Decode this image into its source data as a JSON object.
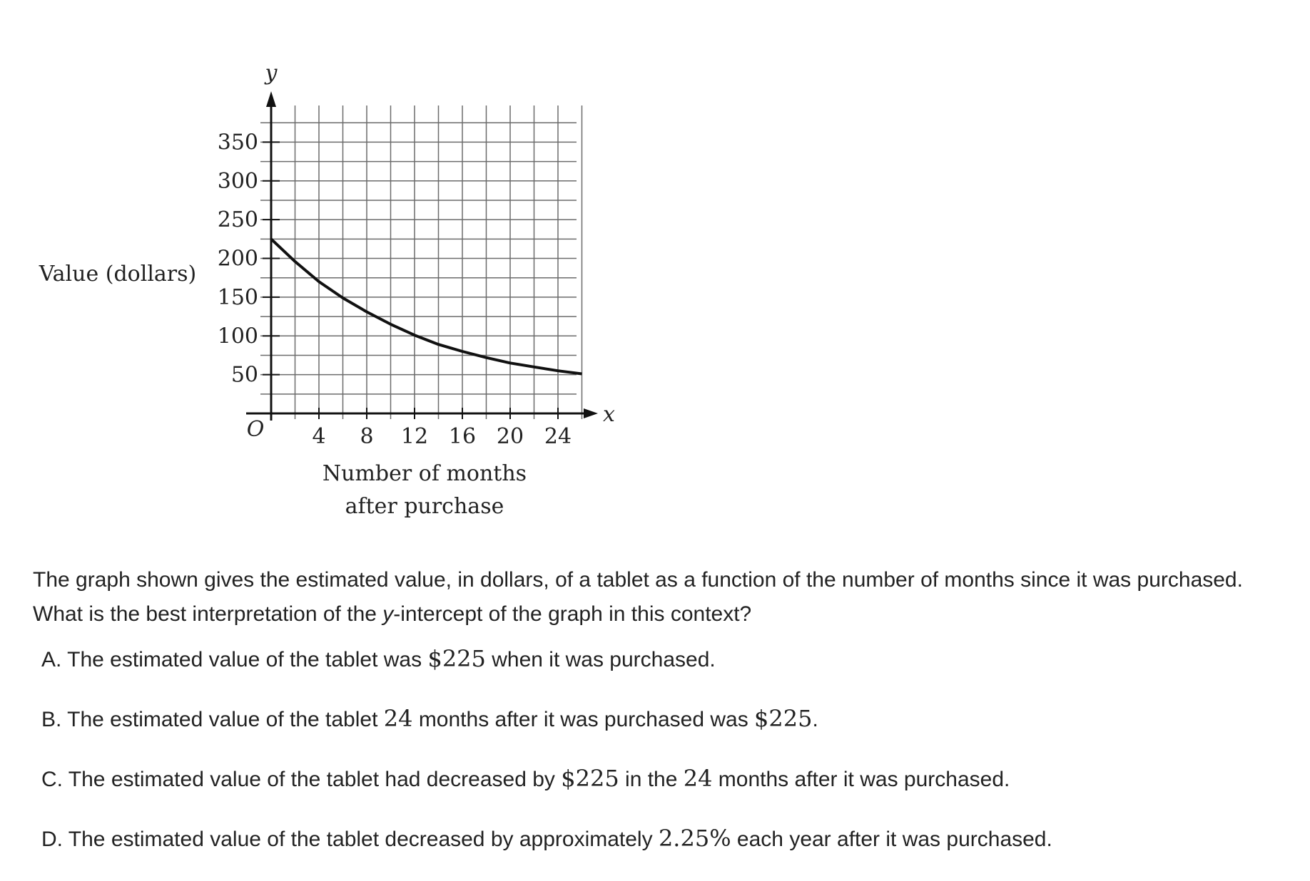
{
  "chart_data": {
    "type": "line",
    "xlabel": "Number of months after purchase",
    "xlabel_lines": [
      "Number of months",
      "after purchase"
    ],
    "ylabel": "Value (dollars)",
    "x_axis_symbol": "x",
    "y_axis_symbol": "y",
    "origin_label": "O",
    "xlim": [
      0,
      26
    ],
    "ylim": [
      0,
      400
    ],
    "x_ticks": [
      4,
      8,
      12,
      16,
      20,
      24
    ],
    "y_ticks": [
      50,
      100,
      150,
      200,
      250,
      300,
      350
    ],
    "grid": true,
    "grid_x_step": 2,
    "grid_y_step": 25,
    "legend": "none",
    "series": [
      {
        "x": [
          0,
          2,
          4,
          6,
          8,
          10,
          12,
          14,
          16,
          18,
          20,
          22,
          24,
          26
        ],
        "y": [
          225,
          196,
          170,
          149,
          131,
          115,
          101,
          89,
          80,
          72,
          65,
          60,
          55,
          51
        ]
      }
    ]
  },
  "question": {
    "stem_before": "The graph shown gives the estimated value, in dollars, of a tablet as a function of the number of months since it was purchased. What is the best interpretation of the ",
    "stem_italic": "y",
    "stem_after": "-intercept of the graph in this context?",
    "choices": [
      {
        "letter": "A.",
        "p1": "The estimated value of the tablet was ",
        "m1": "$225",
        "p2": " when it was purchased.",
        "m2": "",
        "p3": ""
      },
      {
        "letter": "B.",
        "p1": "The estimated value of the tablet ",
        "m1": "24",
        "p2": " months after it was purchased was ",
        "m2": "$225",
        "p3": "."
      },
      {
        "letter": "C.",
        "p1": "The estimated value of the tablet had decreased by ",
        "m1": "$225",
        "p2": " in the ",
        "m2": "24",
        "p3": " months after it was purchased."
      },
      {
        "letter": "D.",
        "p1": "The estimated value of the tablet decreased by approximately ",
        "m1": "2.25%",
        "p2": " each year after it was purchased.",
        "m2": "",
        "p3": ""
      }
    ]
  }
}
